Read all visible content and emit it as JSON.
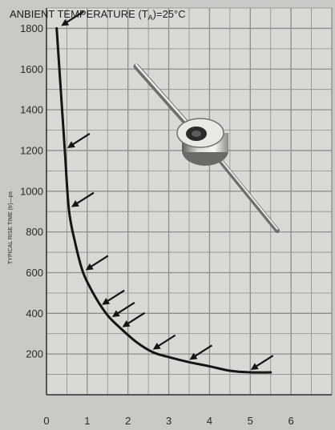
{
  "chart_data": {
    "type": "line",
    "title": "ANBIENT TEMPERATURE (T",
    "title_subscript": "A",
    "title_suffix": ")=25°C",
    "ylabel": "TYPICAL RISE TIME (tr)—ps",
    "xlabel": "",
    "xlim": [
      0,
      7
    ],
    "ylim": [
      0,
      1900
    ],
    "x_ticks": [
      0,
      1,
      2,
      3,
      4,
      5,
      6
    ],
    "y_ticks": [
      200,
      400,
      600,
      800,
      1000,
      1200,
      1400,
      1600,
      1800
    ],
    "grid": true,
    "series": [
      {
        "x": [
          0.25,
          0.35,
          0.45,
          0.55,
          0.7,
          0.9,
          1.2,
          1.5,
          1.8,
          2.2,
          2.6,
          3.0,
          3.5,
          4.0,
          4.5,
          5.0,
          5.5
        ],
        "y": [
          1800,
          1500,
          1200,
          910,
          750,
          600,
          480,
          390,
          330,
          260,
          210,
          185,
          160,
          140,
          118,
          110,
          110
        ]
      }
    ],
    "annotations": [
      {
        "type": "arrow",
        "x": 0.3,
        "y": 1800
      },
      {
        "type": "arrow",
        "x": 0.45,
        "y": 1200
      },
      {
        "type": "arrow",
        "x": 0.55,
        "y": 910
      },
      {
        "type": "arrow",
        "x": 0.9,
        "y": 600
      },
      {
        "type": "arrow",
        "x": 1.3,
        "y": 430
      },
      {
        "type": "arrow",
        "x": 1.55,
        "y": 370
      },
      {
        "type": "arrow",
        "x": 1.8,
        "y": 320
      },
      {
        "type": "arrow",
        "x": 2.55,
        "y": 210
      },
      {
        "type": "arrow",
        "x": 3.45,
        "y": 160
      },
      {
        "type": "arrow",
        "x": 4.95,
        "y": 110
      }
    ],
    "colors": {
      "background": "#c9c9c7",
      "plot_area": "#d9d9d6",
      "grid": "#8e8e8c",
      "line": "#151515"
    },
    "illustration": "diode-component"
  }
}
